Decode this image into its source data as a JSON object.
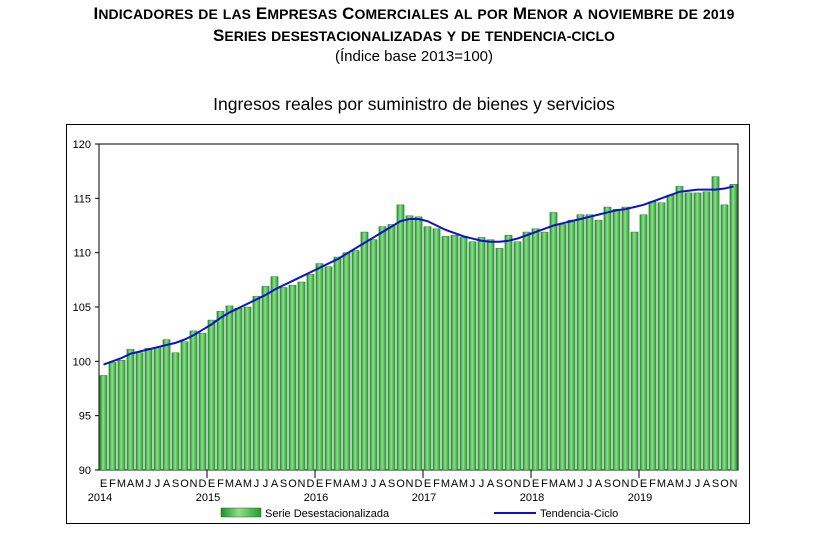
{
  "header": {
    "title_line1": "Indicadores de las Empresas Comerciales al por Menor a noviembre de 2019",
    "title_line2": "Series desestacionalizadas y de tendencia-ciclo",
    "title_line3": "(Índice base 2013=100)"
  },
  "chart_data": {
    "type": "bar",
    "title": "Ingresos reales por suministro de bienes y servicios",
    "xlabel": "",
    "ylabel": "",
    "ylim": [
      90,
      120
    ],
    "yticks": [
      90,
      95,
      100,
      105,
      110,
      115,
      120
    ],
    "grid": false,
    "legend_position": "bottom",
    "month_labels": [
      "E",
      "F",
      "M",
      "A",
      "M",
      "J",
      "J",
      "A",
      "S",
      "O",
      "N",
      "D"
    ],
    "year_labels": [
      "2014",
      "2015",
      "2016",
      "2017",
      "2018",
      "2019"
    ],
    "categories": [
      "2014-01",
      "2014-02",
      "2014-03",
      "2014-04",
      "2014-05",
      "2014-06",
      "2014-07",
      "2014-08",
      "2014-09",
      "2014-10",
      "2014-11",
      "2014-12",
      "2015-01",
      "2015-02",
      "2015-03",
      "2015-04",
      "2015-05",
      "2015-06",
      "2015-07",
      "2015-08",
      "2015-09",
      "2015-10",
      "2015-11",
      "2015-12",
      "2016-01",
      "2016-02",
      "2016-03",
      "2016-04",
      "2016-05",
      "2016-06",
      "2016-07",
      "2016-08",
      "2016-09",
      "2016-10",
      "2016-11",
      "2016-12",
      "2017-01",
      "2017-02",
      "2017-03",
      "2017-04",
      "2017-05",
      "2017-06",
      "2017-07",
      "2017-08",
      "2017-09",
      "2017-10",
      "2017-11",
      "2017-12",
      "2018-01",
      "2018-02",
      "2018-03",
      "2018-04",
      "2018-05",
      "2018-06",
      "2018-07",
      "2018-08",
      "2018-09",
      "2018-10",
      "2018-11",
      "2018-12",
      "2019-01",
      "2019-02",
      "2019-03",
      "2019-04",
      "2019-05",
      "2019-06",
      "2019-07",
      "2019-08",
      "2019-09",
      "2019-10",
      "2019-11"
    ],
    "series": [
      {
        "name": "Serie Desestacionalizada",
        "type": "bar",
        "color": "#3cb43c",
        "values": [
          98.7,
          99.9,
          100.1,
          101.1,
          100.8,
          101.2,
          101.3,
          102.0,
          100.8,
          101.8,
          102.8,
          102.6,
          103.8,
          104.6,
          105.1,
          104.9,
          105.0,
          106.0,
          106.9,
          107.8,
          106.8,
          107.0,
          107.3,
          108.0,
          109.0,
          108.7,
          109.6,
          110.0,
          110.2,
          111.9,
          111.2,
          112.4,
          112.6,
          114.4,
          113.4,
          113.3,
          112.4,
          112.2,
          111.5,
          111.6,
          111.4,
          111.0,
          111.4,
          111.2,
          110.4,
          111.6,
          111.0,
          111.9,
          112.2,
          111.9,
          113.7,
          112.6,
          113.0,
          113.5,
          113.5,
          113.0,
          114.2,
          114.0,
          114.2,
          111.9,
          113.5,
          114.7,
          114.6,
          115.3,
          116.1,
          115.5,
          115.5,
          115.6,
          117.0,
          114.4,
          116.3
        ]
      },
      {
        "name": "Tendencia-Ciclo",
        "type": "line",
        "color": "#1010c8",
        "values": [
          99.7,
          100.0,
          100.3,
          100.7,
          100.9,
          101.1,
          101.3,
          101.5,
          101.7,
          102.0,
          102.4,
          102.9,
          103.4,
          104.0,
          104.5,
          104.9,
          105.3,
          105.7,
          106.1,
          106.6,
          107.0,
          107.4,
          107.8,
          108.2,
          108.6,
          109.0,
          109.4,
          109.9,
          110.4,
          110.9,
          111.4,
          111.9,
          112.4,
          112.9,
          113.1,
          113.1,
          112.9,
          112.5,
          112.1,
          111.8,
          111.5,
          111.3,
          111.1,
          111.0,
          111.0,
          111.1,
          111.3,
          111.6,
          111.9,
          112.2,
          112.5,
          112.7,
          112.9,
          113.1,
          113.3,
          113.5,
          113.7,
          113.9,
          114.0,
          114.2,
          114.4,
          114.7,
          115.0,
          115.3,
          115.6,
          115.7,
          115.8,
          115.8,
          115.8,
          115.9,
          116.1
        ]
      }
    ]
  }
}
